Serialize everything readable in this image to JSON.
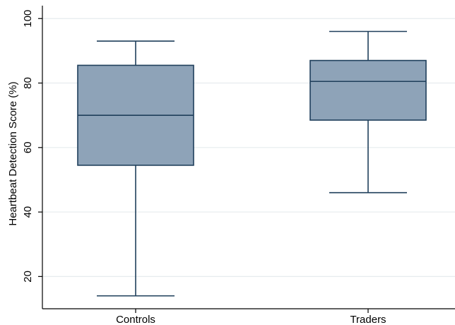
{
  "chart_data": {
    "type": "box",
    "title": "",
    "xlabel": "",
    "ylabel": "Heartbeat Detection Score (%)",
    "ylim": [
      10,
      104
    ],
    "yticks": [
      20,
      40,
      60,
      80,
      100
    ],
    "grid": true,
    "legend": "none",
    "colors": {
      "box_fill": "#8ea3b8",
      "box_stroke": "#1f3f5b",
      "grid": "#e6ebee",
      "axis": "#000000"
    },
    "categories": [
      "Controls",
      "Traders"
    ],
    "boxes": [
      {
        "category": "Controls",
        "min": 14,
        "q1": 54.5,
        "median": 70,
        "q3": 85.5,
        "max": 93
      },
      {
        "category": "Traders",
        "min": 46,
        "q1": 68.5,
        "median": 80.5,
        "q3": 87,
        "max": 96
      }
    ]
  }
}
